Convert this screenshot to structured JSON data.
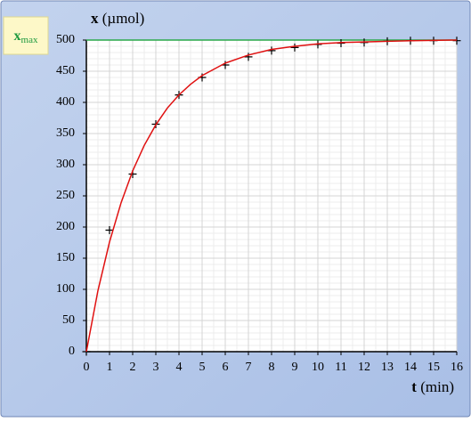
{
  "chart_data": {
    "type": "scatter",
    "y_label": {
      "symbol": "x",
      "unit": "(µmol)"
    },
    "x_label": {
      "symbol": "t",
      "unit": "(min)"
    },
    "reference": {
      "base": "x",
      "sub": "max",
      "value": 500,
      "color": "#2aa84a"
    },
    "xlim": [
      0,
      16
    ],
    "ylim": [
      0,
      500
    ],
    "xticks": [
      0,
      1,
      2,
      3,
      4,
      5,
      6,
      7,
      8,
      9,
      10,
      11,
      12,
      13,
      14,
      15,
      16
    ],
    "yticks": [
      0,
      50,
      100,
      150,
      200,
      250,
      300,
      350,
      400,
      450,
      500
    ],
    "grid": true,
    "minor_x": 2,
    "minor_y": 5,
    "series": [
      {
        "mark": "cross",
        "color": "#000000",
        "x": [
          0,
          1,
          2,
          3,
          4,
          5,
          6,
          7,
          8,
          9,
          10,
          11,
          12,
          13,
          14,
          15,
          16
        ],
        "values": [
          0,
          195,
          285,
          365,
          412,
          440,
          460,
          473,
          483,
          488,
          493,
          495,
          496,
          498,
          499,
          499,
          499
        ]
      },
      {
        "mark": "line",
        "color": "#e01010",
        "x": [
          0,
          0.5,
          1,
          1.5,
          2,
          2.5,
          3,
          3.5,
          4,
          4.5,
          5,
          6,
          7,
          8,
          9,
          10,
          11,
          12,
          13,
          14,
          16
        ],
        "values": [
          0,
          98,
          176,
          239,
          290,
          331,
          364,
          391,
          412,
          429,
          443,
          463,
          476,
          485,
          490,
          494,
          496,
          497,
          498,
          499,
          500
        ]
      }
    ]
  }
}
